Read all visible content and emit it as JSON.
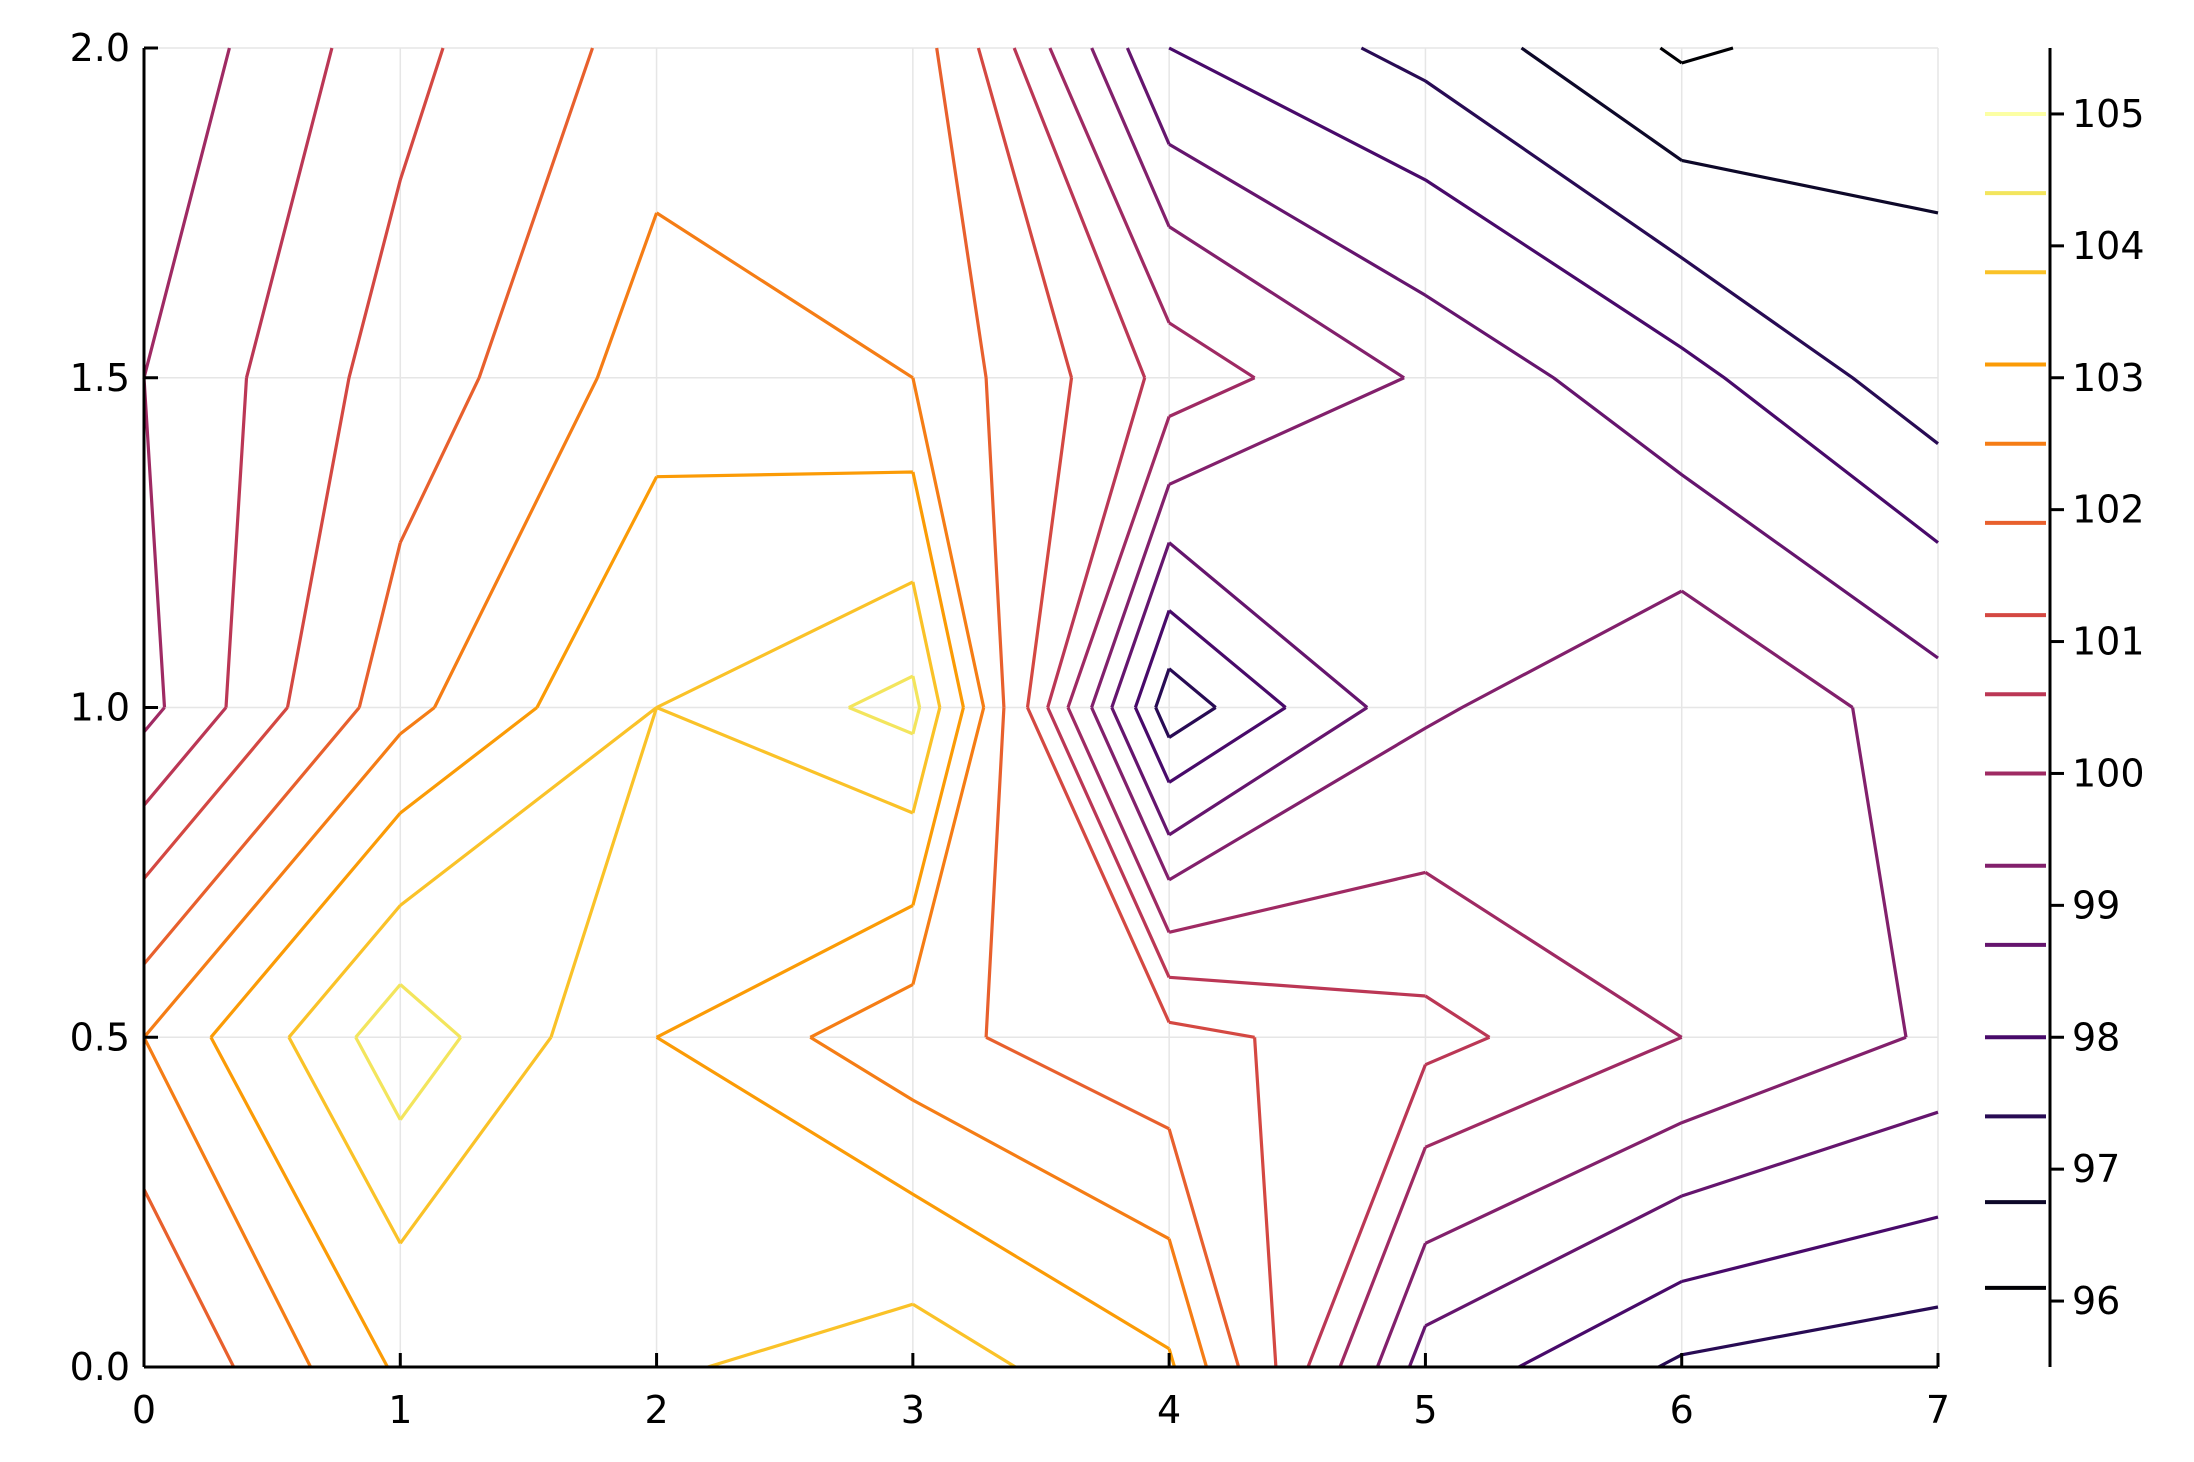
{
  "chart_data": {
    "type": "contour",
    "title": "",
    "xlabel": "",
    "ylabel": "",
    "xlim": [
      0,
      7
    ],
    "ylim": [
      0,
      2
    ],
    "x_ticks": [
      0,
      1,
      2,
      3,
      4,
      5,
      6,
      7
    ],
    "x_tick_labels": [
      "0",
      "1",
      "2",
      "3",
      "4",
      "5",
      "6",
      "7"
    ],
    "y_ticks": [
      0,
      0.5,
      1,
      1.5,
      2
    ],
    "y_tick_labels": [
      "0.0",
      "0.5",
      "1.0",
      "1.5",
      "2.0"
    ],
    "grid": true,
    "legend_placement": "right",
    "colorbar": {
      "range": [
        95.5,
        105.5
      ],
      "tick_values": [
        96,
        97,
        98,
        99,
        100,
        101,
        102,
        103,
        104,
        105
      ],
      "tick_labels": [
        "96",
        "97",
        "98",
        "99",
        "100",
        "101",
        "102",
        "103",
        "104",
        "105"
      ]
    },
    "colormap": "inferno",
    "levels": [
      {
        "value": 96.1,
        "color": "#000004"
      },
      {
        "value": 96.75,
        "color": "#0d0829"
      },
      {
        "value": 97.4,
        "color": "#280b54"
      },
      {
        "value": 98.0,
        "color": "#480a6a"
      },
      {
        "value": 98.7,
        "color": "#65156e"
      },
      {
        "value": 99.3,
        "color": "#82206c"
      },
      {
        "value": 100.0,
        "color": "#9f2a63"
      },
      {
        "value": 100.6,
        "color": "#bb3755"
      },
      {
        "value": 101.2,
        "color": "#d44842"
      },
      {
        "value": 101.9,
        "color": "#e8602d"
      },
      {
        "value": 102.5,
        "color": "#f57d15"
      },
      {
        "value": 103.1,
        "color": "#fb9b06"
      },
      {
        "value": 103.8,
        "color": "#fac228"
      },
      {
        "value": 104.4,
        "color": "#f3e55d"
      },
      {
        "value": 105.0,
        "color": "#fcffa4"
      }
    ],
    "grid_z": [
      [
        101.2,
        103.2,
        103.7,
        104.2,
        103.2,
        98.4,
        97.3,
        97.0
      ],
      [
        102.5,
        104.8,
        103.1,
        102.1,
        101.4,
        100.8,
        100.0,
        99.2
      ],
      [
        99.8,
        102.3,
        103.8,
        104.6,
        97.0,
        99.2,
        99.9,
        99.0
      ],
      [
        100.0,
        101.5,
        102.8,
        102.5,
        100.4,
        99.2,
        98.2,
        97.0
      ],
      [
        99.5,
        101.0,
        102.2,
        102.3,
        98.0,
        97.2,
        96.0,
        96.5
      ]
    ]
  }
}
